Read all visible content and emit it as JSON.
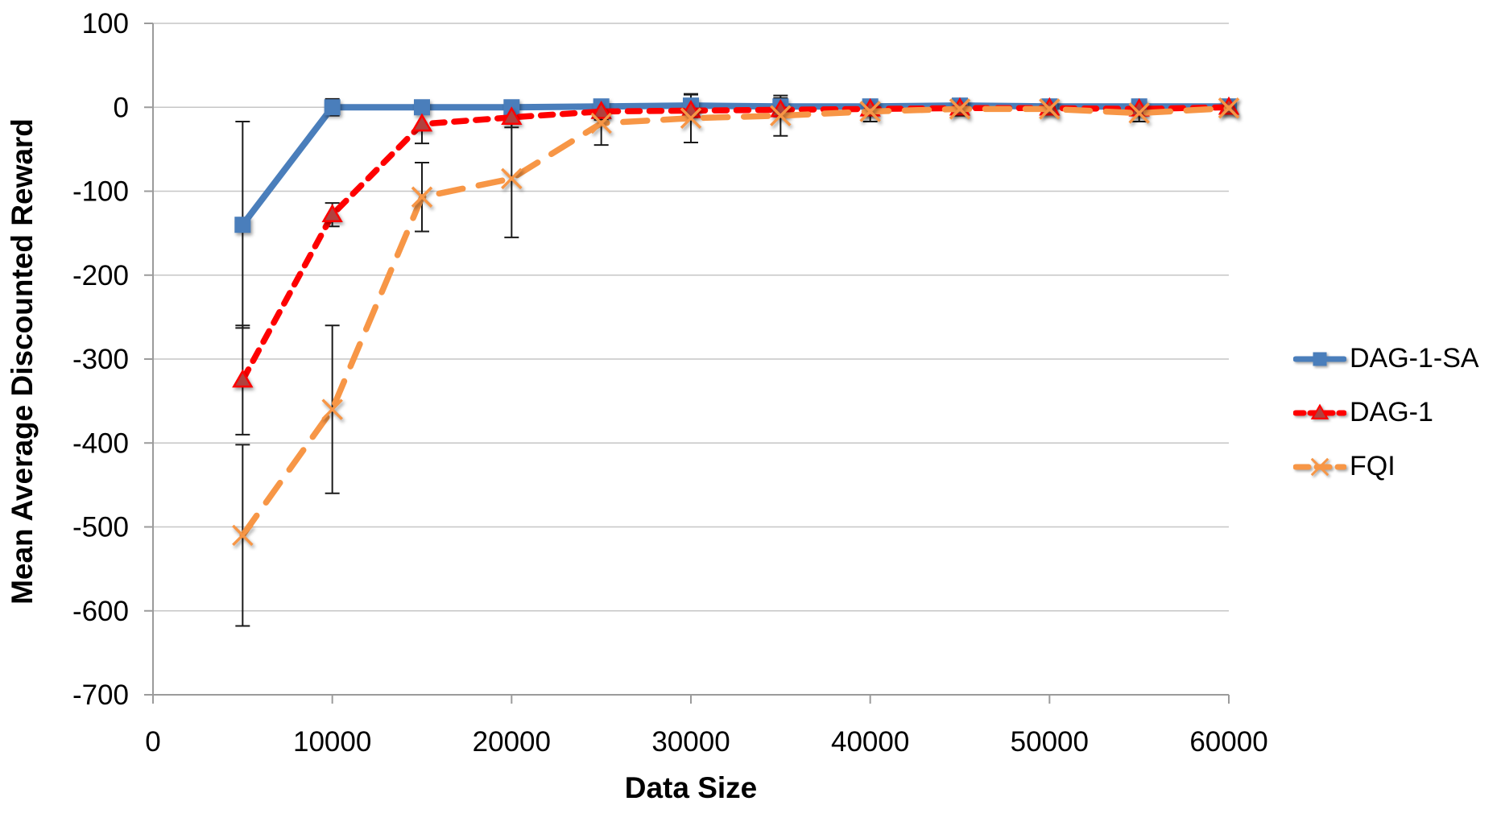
{
  "chart_data": {
    "type": "line",
    "title": "",
    "xlabel": "Data Size",
    "ylabel": "Mean Average Discounted Reward",
    "xlim": [
      0,
      60000
    ],
    "ylim": [
      -700,
      100
    ],
    "xticks": [
      0,
      10000,
      20000,
      30000,
      40000,
      50000,
      60000
    ],
    "yticks": [
      100,
      0,
      -100,
      -200,
      -300,
      -400,
      -500,
      -600,
      -700
    ],
    "grid": "horizontal",
    "legend_position": "right",
    "x": [
      5000,
      10000,
      15000,
      20000,
      25000,
      30000,
      35000,
      40000,
      45000,
      50000,
      55000,
      60000
    ],
    "series": [
      {
        "name": "DAG-1-SA",
        "color": "#4A7EBB",
        "marker": "square",
        "marker_fill": "#4A7EBB",
        "dash": "solid",
        "values": [
          -140,
          0,
          0,
          0,
          1,
          2,
          1,
          1,
          2,
          1,
          1,
          1
        ],
        "error": [
          123,
          10,
          7,
          5,
          5,
          13,
          10,
          5,
          7,
          5,
          5,
          5
        ]
      },
      {
        "name": "DAG-1",
        "color": "#FE0000",
        "marker": "triangle",
        "marker_fill": "#B0423F",
        "dash": "dash",
        "values": [
          -325,
          -128,
          -20,
          -12,
          -5,
          -4,
          -3,
          -2,
          -1,
          -1,
          -2,
          0
        ],
        "error": [
          65,
          14,
          23,
          12,
          10,
          8,
          8,
          5,
          5,
          4,
          5,
          4
        ]
      },
      {
        "name": "FQI",
        "color": "#F79646",
        "marker": "x",
        "marker_fill": "#F79646",
        "dash": "longdash",
        "values": [
          -510,
          -360,
          -107,
          -85,
          -19,
          -13,
          -10,
          -5,
          -2,
          -2,
          -7,
          -1
        ],
        "error": [
          108,
          100,
          41,
          70,
          26,
          29,
          24,
          12,
          8,
          6,
          10,
          6
        ]
      }
    ],
    "colors": {
      "gridline": "#C6C6C6",
      "axis": "#9B9B9B",
      "error_bar": "#1A1A1A",
      "text": "#000000"
    }
  }
}
